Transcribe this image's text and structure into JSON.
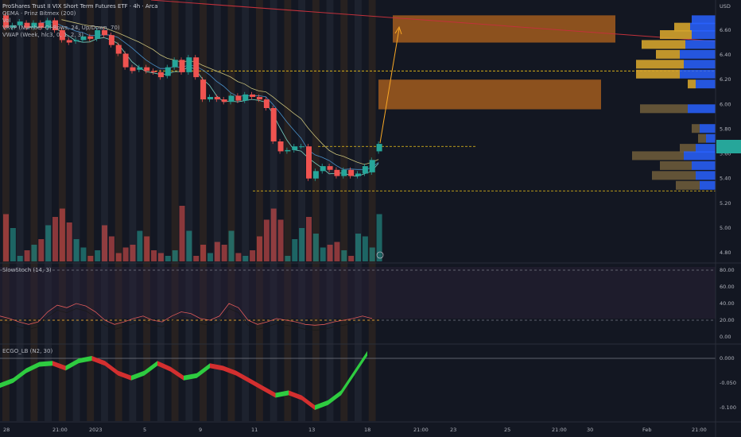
{
  "legend": {
    "title": "ProShares Trust II VIX Short Term Futures ETF · 4h · Arca",
    "line2": "QEMA · Prinz Bitmex (200)",
    "line3": "Vol",
    "line4": "VRVP (Number Of Rows, 24, Up/Down, 70)",
    "line5": "VWAP (Week, hlc3, 0, 1, 2, 3)"
  },
  "panes": {
    "stoch_label": "SlowStoch (14, 3)",
    "ecgo_label": "ECGO_LB (N2, 30)"
  },
  "price_axis": {
    "currency": "USD",
    "ticks": [
      "6.60",
      "6.40",
      "6.20",
      "6.00",
      "5.80",
      "5.60",
      "5.40",
      "5.20",
      "5.00",
      "4.80"
    ],
    "last_price_badge_color": "#26a69a"
  },
  "stoch_axis": {
    "ticks": [
      "80.00",
      "60.00",
      "40.00",
      "20.00",
      "0.00"
    ]
  },
  "ecgo_axis": {
    "ticks": [
      "0.000",
      "-0.050",
      "-0.100"
    ]
  },
  "time_axis": {
    "labels": [
      "28",
      "21:00",
      "2023",
      "5",
      "9",
      "11",
      "13",
      "18",
      "21:00",
      "23",
      "25",
      "21:00",
      "30",
      "Feb",
      "21:00"
    ]
  },
  "colors": {
    "up": "#26a69a",
    "down": "#ef5350",
    "zone": "#b5651d",
    "trendline": "#c2313b",
    "arrow": "#f9a825",
    "dashed_level": "#f0c419",
    "vrvp_up": "#d4a32c",
    "vrvp_down": "#2962ff"
  },
  "chart_data": {
    "type": "candlestick",
    "title": "ProShares Trust II VIX Short Term Futures ETF · 4h · Arca",
    "ylabel": "USD",
    "ylim": [
      4.8,
      6.72
    ],
    "candles": [
      [
        6.72,
        6.62
      ],
      [
        6.62,
        6.64
      ],
      [
        6.64,
        6.67
      ],
      [
        6.66,
        6.62
      ],
      [
        6.62,
        6.66
      ],
      [
        6.66,
        6.62
      ],
      [
        6.62,
        6.68
      ],
      [
        6.68,
        6.6
      ],
      [
        6.6,
        6.52
      ],
      [
        6.52,
        6.5
      ],
      [
        6.51,
        6.52
      ],
      [
        6.52,
        6.55
      ],
      [
        6.55,
        6.53
      ],
      [
        6.53,
        6.6
      ],
      [
        6.6,
        6.56
      ],
      [
        6.56,
        6.48
      ],
      [
        6.48,
        6.41
      ],
      [
        6.41,
        6.3
      ],
      [
        6.3,
        6.27
      ],
      [
        6.28,
        6.3
      ],
      [
        6.3,
        6.27
      ],
      [
        6.27,
        6.26
      ],
      [
        6.26,
        6.22
      ],
      [
        6.23,
        6.3
      ],
      [
        6.3,
        6.36
      ],
      [
        6.36,
        6.26
      ],
      [
        6.26,
        6.38
      ],
      [
        6.38,
        6.22
      ],
      [
        6.2,
        6.04
      ],
      [
        6.04,
        6.06
      ],
      [
        6.06,
        6.04
      ],
      [
        6.04,
        6.02
      ],
      [
        6.02,
        6.07
      ],
      [
        6.07,
        6.03
      ],
      [
        6.03,
        6.08
      ],
      [
        6.08,
        6.06
      ],
      [
        6.06,
        6.04
      ],
      [
        6.04,
        5.97
      ],
      [
        5.97,
        5.7
      ],
      [
        5.7,
        5.62
      ],
      [
        5.62,
        5.63
      ],
      [
        5.63,
        5.66
      ],
      [
        5.66,
        5.66
      ],
      [
        5.66,
        5.4
      ],
      [
        5.4,
        5.46
      ],
      [
        5.46,
        5.5
      ],
      [
        5.5,
        5.47
      ],
      [
        5.47,
        5.42
      ],
      [
        5.42,
        5.47
      ],
      [
        5.47,
        5.42
      ],
      [
        5.42,
        5.44
      ],
      [
        5.44,
        5.5
      ],
      [
        5.45,
        5.55
      ],
      [
        5.62,
        5.68
      ]
    ],
    "volume_relative": [
      0.85,
      0.6,
      0.1,
      0.2,
      0.3,
      0.4,
      0.65,
      0.8,
      0.95,
      0.7,
      0.4,
      0.25,
      0.1,
      0.2,
      0.65,
      0.45,
      0.15,
      0.25,
      0.3,
      0.55,
      0.45,
      0.2,
      0.15,
      0.1,
      0.2,
      1.0,
      0.55,
      0.1,
      0.3,
      0.15,
      0.35,
      0.3,
      0.55,
      0.15,
      0.1,
      0.2,
      0.45,
      0.75,
      0.95,
      0.75,
      0.1,
      0.4,
      0.6,
      0.8,
      0.5,
      0.25,
      0.3,
      0.35,
      0.2,
      0.1,
      0.5,
      0.45,
      0.25,
      0.85
    ],
    "horizontal_levels": [
      6.27,
      5.66,
      5.3
    ],
    "resistance_zones": [
      [
        6.5,
        6.72
      ],
      [
        5.96,
        6.2
      ]
    ]
  }
}
